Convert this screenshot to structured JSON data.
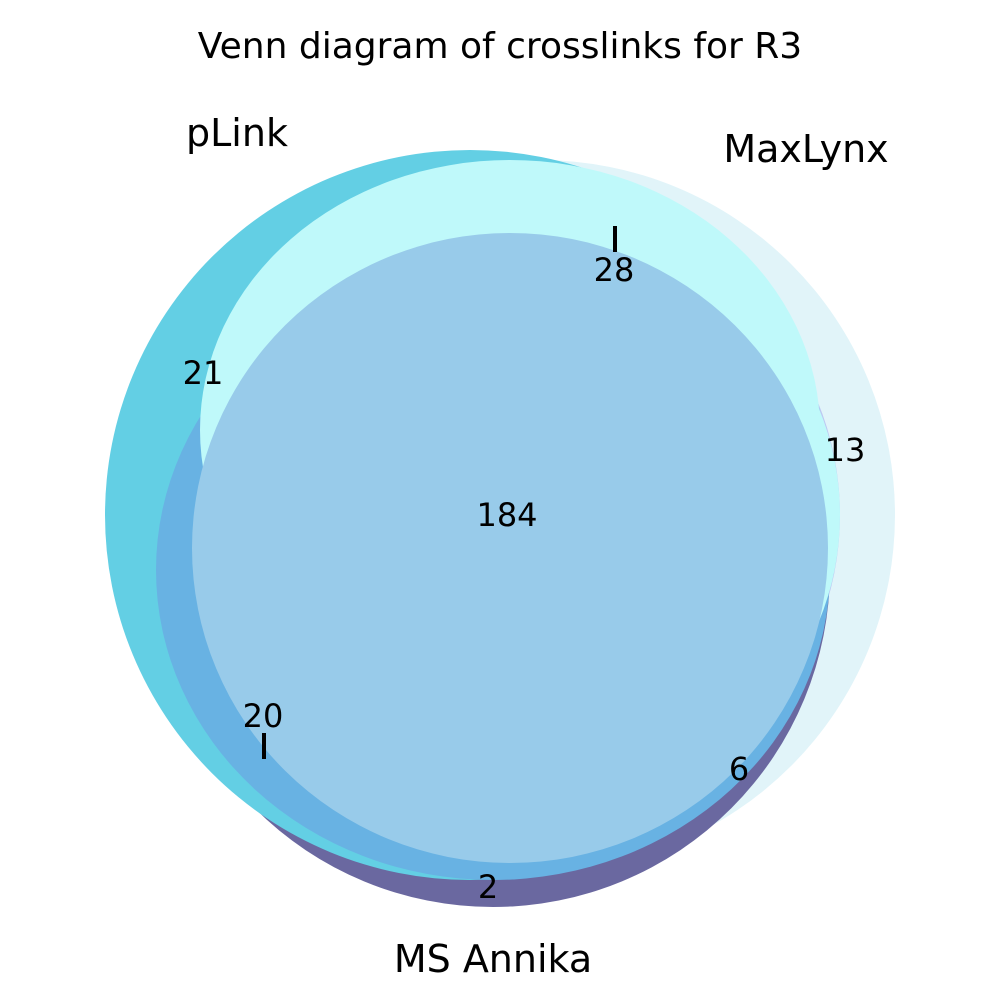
{
  "title": "Venn diagram of crosslinks for R3",
  "sets": {
    "plink": {
      "name": "pLink",
      "color": "#63cfe4"
    },
    "maxlynx": {
      "name": "MaxLynx",
      "color": "#bff9fa"
    },
    "msannika": {
      "name": "MS Annika",
      "color": "#6a68a0"
    }
  },
  "overlap_colors": {
    "plink_msannika": "#68b2e3",
    "maxlynx_msannika": "#bcc8f2",
    "all_three": "#98cbea",
    "maxlynx_outer": "#e1f4f9"
  },
  "counts": {
    "plink_only": "21",
    "maxlynx_only": "13",
    "msannika_only": "2",
    "plink_maxlynx": "28",
    "plink_msannika": "20",
    "maxlynx_msannika": "6",
    "all_three": "184"
  }
}
